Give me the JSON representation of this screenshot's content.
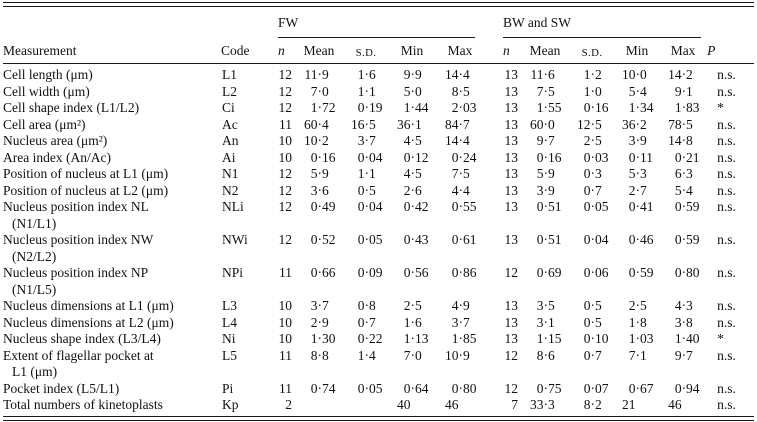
{
  "table": {
    "headers": {
      "measurement": "Measurement",
      "code": "Code",
      "group1": "FW",
      "group2": "BW and SW",
      "n": "n",
      "mean": "Mean",
      "sd": "S.D.",
      "min": "Min",
      "max": "Max",
      "p": "P"
    },
    "rows": [
      {
        "m1": "Cell length (μm)",
        "m2": "",
        "code": "L1",
        "fw": [
          "12",
          "11·9",
          "1·6",
          "9·9",
          "14·4"
        ],
        "bw": [
          "13",
          "11·6",
          "1·2",
          "10·0",
          "14·2"
        ],
        "p": "n.s."
      },
      {
        "m1": "Cell width (μm)",
        "m2": "",
        "code": "L2",
        "fw": [
          "12",
          "7·0",
          "1·1",
          "5·0",
          "8·5"
        ],
        "bw": [
          "13",
          "7·5",
          "1·0",
          "5·4",
          "9·1"
        ],
        "p": "n.s."
      },
      {
        "m1": "Cell shape index (L1/L2)",
        "m2": "",
        "code": "Ci",
        "fw": [
          "12",
          "1·72",
          "0·19",
          "1·44",
          "2·03"
        ],
        "bw": [
          "13",
          "1·55",
          "0·16",
          "1·34",
          "1·83"
        ],
        "p": "*"
      },
      {
        "m1": "Cell area (μm²)",
        "m2": "",
        "code": "Ac",
        "fw": [
          "11",
          "60·4",
          "16·5",
          "36·1",
          "84·7"
        ],
        "bw": [
          "13",
          "60·0",
          "12·5",
          "36·2",
          "78·5"
        ],
        "p": "n.s."
      },
      {
        "m1": "Nucleus area (μm²)",
        "m2": "",
        "code": "An",
        "fw": [
          "10",
          "10·2",
          "3·7",
          "4·5",
          "14·4"
        ],
        "bw": [
          "13",
          "9·7",
          "2·5",
          "3·9",
          "14·8"
        ],
        "p": "n.s."
      },
      {
        "m1": "Area index (An/Ac)",
        "m2": "",
        "code": "Ai",
        "fw": [
          "10",
          "0·16",
          "0·04",
          "0·12",
          "0·24"
        ],
        "bw": [
          "13",
          "0·16",
          "0·03",
          "0·11",
          "0·21"
        ],
        "p": "n.s."
      },
      {
        "m1": "Position of nucleus at L1 (μm)",
        "m2": "",
        "code": "N1",
        "fw": [
          "12",
          "5·9",
          "1·1",
          "4·5",
          "7·5"
        ],
        "bw": [
          "13",
          "5·9",
          "0·3",
          "5·3",
          "6·3"
        ],
        "p": "n.s."
      },
      {
        "m1": "Position of nucleus at L2 (μm)",
        "m2": "",
        "code": "N2",
        "fw": [
          "12",
          "3·6",
          "0·5",
          "2·6",
          "4·4"
        ],
        "bw": [
          "13",
          "3·9",
          "0·7",
          "2·7",
          "5·4"
        ],
        "p": "n.s."
      },
      {
        "m1": "Nucleus position index NL",
        "m2": "(N1/L1)",
        "code": "NLi",
        "fw": [
          "12",
          "0·49",
          "0·04",
          "0·42",
          "0·55"
        ],
        "bw": [
          "13",
          "0·51",
          "0·05",
          "0·41",
          "0·59"
        ],
        "p": "n.s."
      },
      {
        "m1": "Nucleus position index NW",
        "m2": "(N2/L2)",
        "code": "NWi",
        "fw": [
          "12",
          "0·52",
          "0·05",
          "0·43",
          "0·61"
        ],
        "bw": [
          "13",
          "0·51",
          "0·04",
          "0·46",
          "0·59"
        ],
        "p": "n.s."
      },
      {
        "m1": "Nucleus position index NP",
        "m2": "(N1/L5)",
        "code": "NPi",
        "fw": [
          "11",
          "0·66",
          "0·09",
          "0·56",
          "0·86"
        ],
        "bw": [
          "12",
          "0·69",
          "0·06",
          "0·59",
          "0·80"
        ],
        "p": "n.s."
      },
      {
        "m1": "Nucleus dimensions at L1 (μm)",
        "m2": "",
        "code": "L3",
        "fw": [
          "10",
          "3·7",
          "0·8",
          "2·5",
          "4·9"
        ],
        "bw": [
          "13",
          "3·5",
          "0·5",
          "2·5",
          "4·3"
        ],
        "p": "n.s."
      },
      {
        "m1": "Nucleus dimensions at L2 (μm)",
        "m2": "",
        "code": "L4",
        "fw": [
          "10",
          "2·9",
          "0·7",
          "1·6",
          "3·7"
        ],
        "bw": [
          "13",
          "3·1",
          "0·5",
          "1·8",
          "3·8"
        ],
        "p": "n.s."
      },
      {
        "m1": "Nucleus shape index (L3/L4)",
        "m2": "",
        "code": "Ni",
        "fw": [
          "10",
          "1·30",
          "0·22",
          "1·13",
          "1·85"
        ],
        "bw": [
          "13",
          "1·15",
          "0·10",
          "1·03",
          "1·40"
        ],
        "p": "*"
      },
      {
        "m1": "Extent of flagellar pocket at",
        "m2": "L1 (μm)",
        "code": "L5",
        "fw": [
          "11",
          "8·8",
          "1·4",
          "7·0",
          "10·9"
        ],
        "bw": [
          "12",
          "8·6",
          "0·7",
          "7·1",
          "9·7"
        ],
        "p": "n.s."
      },
      {
        "m1": "Pocket index (L5/L1)",
        "m2": "",
        "code": "Pi",
        "fw": [
          "11",
          "0·74",
          "0·05",
          "0·64",
          "0·80"
        ],
        "bw": [
          "12",
          "0·75",
          "0·07",
          "0·67",
          "0·94"
        ],
        "p": "n.s."
      },
      {
        "m1": "Total numbers of kinetoplasts",
        "m2": "",
        "code": "Kp",
        "fw": [
          "2",
          "",
          "",
          "40",
          "46"
        ],
        "bw": [
          "7",
          "33·3",
          "8·2",
          "21",
          "46"
        ],
        "p": "n.s."
      }
    ]
  }
}
